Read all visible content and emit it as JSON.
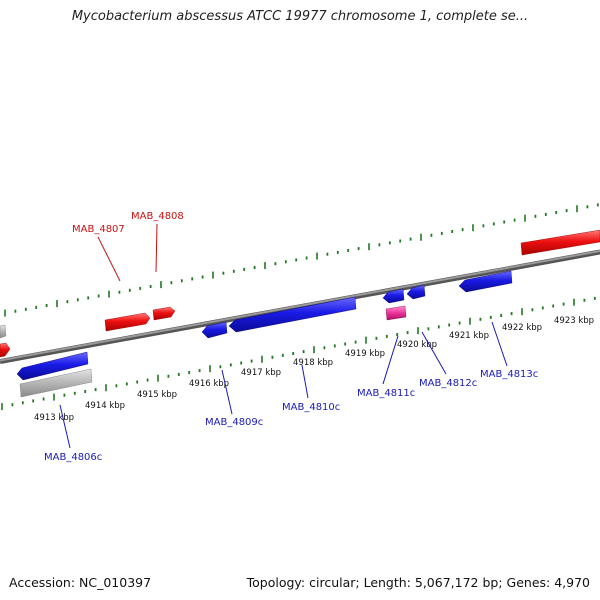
{
  "title": "Mycobacterium abscessus ATCC 19977 chromosome 1, complete se...",
  "footer": {
    "accession": "Accession: NC_010397",
    "summary": "Topology: circular; Length: 5,067,172 bp; Genes: 4,970"
  },
  "colors": {
    "forward_gene": "#ee1111",
    "reverse_gene": "#1a1ae6",
    "pseudo_gene": "#b5b5b5",
    "rna_gene": "#ee3399",
    "tick": "#227722",
    "axis": "#777777",
    "forward_label": "#cc1111",
    "reverse_label": "#1a1ab4"
  },
  "ticks": [
    {
      "label": "4913 kbp"
    },
    {
      "label": "4914 kbp"
    },
    {
      "label": "4915 kbp"
    },
    {
      "label": "4916 kbp"
    },
    {
      "label": "4917 kbp"
    },
    {
      "label": "4918 kbp"
    },
    {
      "label": "4919 kbp"
    },
    {
      "label": "4920 kbp"
    },
    {
      "label": "4921 kbp"
    },
    {
      "label": "4922 kbp"
    },
    {
      "label": "4923 kbp"
    }
  ],
  "gene_labels": [
    {
      "name": "MAB_4807",
      "strand": "forward"
    },
    {
      "name": "MAB_4808",
      "strand": "forward"
    },
    {
      "name": "MAB_4806c",
      "strand": "reverse"
    },
    {
      "name": "MAB_4809c",
      "strand": "reverse"
    },
    {
      "name": "MAB_4810c",
      "strand": "reverse"
    },
    {
      "name": "MAB_4811c",
      "strand": "reverse"
    },
    {
      "name": "MAB_4812c",
      "strand": "reverse"
    },
    {
      "name": "MAB_4813c",
      "strand": "reverse"
    }
  ]
}
